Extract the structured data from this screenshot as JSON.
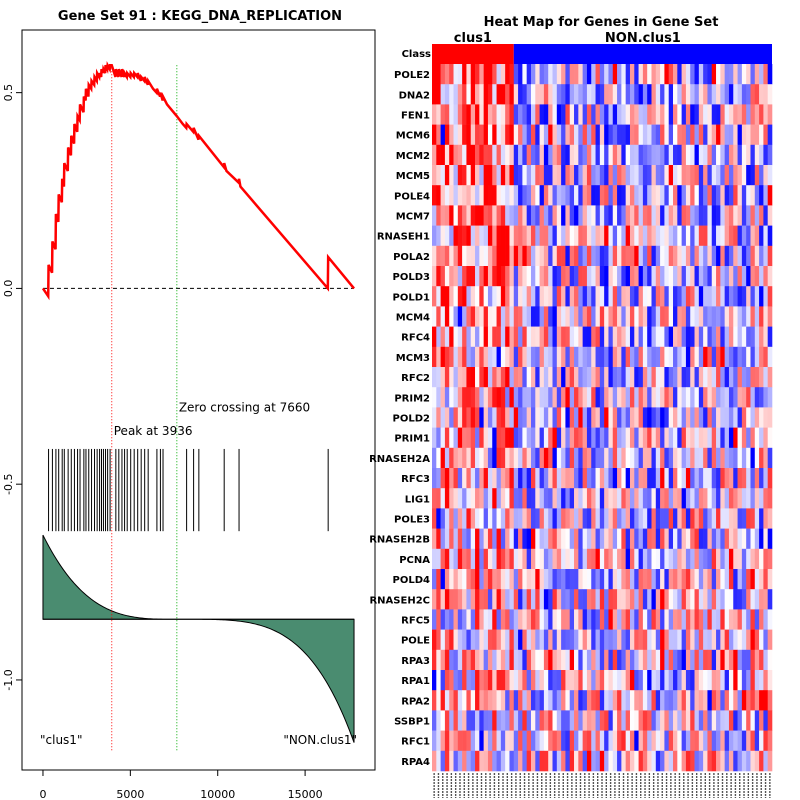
{
  "chart_data": [
    {
      "type": "line",
      "panel": "enrichment-score-plot",
      "title": "Gene Set  91 : KEGG_DNA_REPLICATION",
      "xlabel": "",
      "ylabel": "",
      "xlim": [
        -1200,
        19000
      ],
      "ylim": [
        -1.23,
        0.66
      ],
      "x_ticks": [
        0,
        5000,
        10000,
        15000
      ],
      "x_tick_labels": [
        "0",
        "5000",
        "10000",
        "15000"
      ],
      "y_ticks": [
        0.5,
        0.0,
        -0.5,
        -1.0
      ],
      "y_tick_labels": [
        "0.5",
        "0.0",
        "-0.5",
        "-1.0"
      ],
      "running_es": {
        "x": [
          0,
          300,
          320,
          520,
          540,
          720,
          740,
          880,
          900,
          1080,
          1100,
          1200,
          1220,
          1420,
          1440,
          1600,
          1620,
          1780,
          1800,
          1960,
          1980,
          2100,
          2120,
          2320,
          2340,
          2440,
          2460,
          2600,
          2620,
          2760,
          2780,
          2930,
          2950,
          3080,
          3100,
          3220,
          3240,
          3330,
          3350,
          3440,
          3460,
          3560,
          3580,
          3680,
          3700,
          3820,
          3840,
          3936,
          4150,
          4170,
          4320,
          4340,
          4500,
          4520,
          4650,
          4670,
          4800,
          4820,
          5000,
          5020,
          5200,
          5220,
          5400,
          5420,
          5600,
          5620,
          5800,
          5820,
          6000,
          6020,
          6300,
          6500,
          6520,
          6700,
          6720,
          6850,
          6870,
          7100,
          7660,
          8000,
          8200,
          8220,
          8600,
          8620,
          8900,
          8920,
          10350,
          10370,
          10500,
          11200,
          11220,
          11300,
          16300,
          16320,
          17800
        ],
        "y": [
          0.0,
          -0.02,
          0.06,
          0.04,
          0.12,
          0.1,
          0.19,
          0.17,
          0.24,
          0.22,
          0.28,
          0.26,
          0.32,
          0.3,
          0.36,
          0.34,
          0.39,
          0.37,
          0.42,
          0.4,
          0.44,
          0.43,
          0.47,
          0.45,
          0.49,
          0.48,
          0.51,
          0.49,
          0.52,
          0.51,
          0.53,
          0.52,
          0.54,
          0.53,
          0.55,
          0.54,
          0.55,
          0.54,
          0.56,
          0.55,
          0.56,
          0.55,
          0.57,
          0.56,
          0.57,
          0.56,
          0.57,
          0.57,
          0.54,
          0.56,
          0.54,
          0.56,
          0.54,
          0.56,
          0.54,
          0.55,
          0.54,
          0.55,
          0.54,
          0.55,
          0.54,
          0.55,
          0.54,
          0.55,
          0.53,
          0.54,
          0.53,
          0.54,
          0.52,
          0.53,
          0.51,
          0.5,
          0.51,
          0.49,
          0.5,
          0.48,
          0.49,
          0.47,
          0.44,
          0.42,
          0.41,
          0.42,
          0.4,
          0.41,
          0.38,
          0.39,
          0.31,
          0.32,
          0.3,
          0.27,
          0.28,
          0.26,
          0.0,
          0.08,
          0.0
        ],
        "color": "#ff0000"
      },
      "baseline_y": 0.0,
      "peak_x": 3936,
      "peak_label": "Peak at 3936",
      "zero_crossing_x": 7660,
      "zero_crossing_label": "Zero crossing at 7660",
      "peak_line_color": "#ff0000",
      "zero_line_color": "#00aa00",
      "hit_positions": [
        320,
        540,
        740,
        900,
        1100,
        1220,
        1440,
        1620,
        1800,
        1980,
        2120,
        2340,
        2460,
        2620,
        2780,
        2950,
        3100,
        3240,
        3350,
        3460,
        3580,
        3700,
        3840,
        4170,
        4340,
        4520,
        4670,
        4820,
        5020,
        5220,
        5420,
        5620,
        5820,
        6020,
        6520,
        6720,
        6870,
        8220,
        8620,
        8920,
        10370,
        11220,
        16320
      ],
      "ranked_metric": {
        "start_y": -0.63,
        "zero_y": -0.845,
        "end_y": -1.16,
        "fill_color": "#4a8c70"
      },
      "left_label": "\"clus1\"",
      "right_label": "\"NON.clus1\""
    },
    {
      "type": "heatmap",
      "panel": "gene-heatmap",
      "title": "Heat Map for Genes in Gene Set",
      "class_row_label": "Class",
      "classes": [
        {
          "name": "clus1",
          "count": 19,
          "color": "#ff0000"
        },
        {
          "name": "NON.clus1",
          "count": 60,
          "color": "#0000ff"
        }
      ],
      "genes": [
        "POLE2",
        "DNA2",
        "FEN1",
        "MCM6",
        "MCM2",
        "MCM5",
        "POLE4",
        "MCM7",
        "RNASEH1",
        "POLA2",
        "POLD3",
        "POLD1",
        "MCM4",
        "RFC4",
        "MCM3",
        "RFC2",
        "PRIM2",
        "POLD2",
        "PRIM1",
        "RNASEH2A",
        "RFC3",
        "LIG1",
        "POLE3",
        "RNASEH2B",
        "PCNA",
        "POLD4",
        "RNASEH2C",
        "RFC5",
        "POLE",
        "RPA3",
        "RPA1",
        "RPA2",
        "SSBP1",
        "RFC1",
        "RPA4"
      ],
      "n_samples": 79,
      "value_range": [
        -1,
        1
      ],
      "low_color": "#0000ff",
      "mid_color": "#ffffff",
      "high_color": "#ff0000"
    }
  ]
}
